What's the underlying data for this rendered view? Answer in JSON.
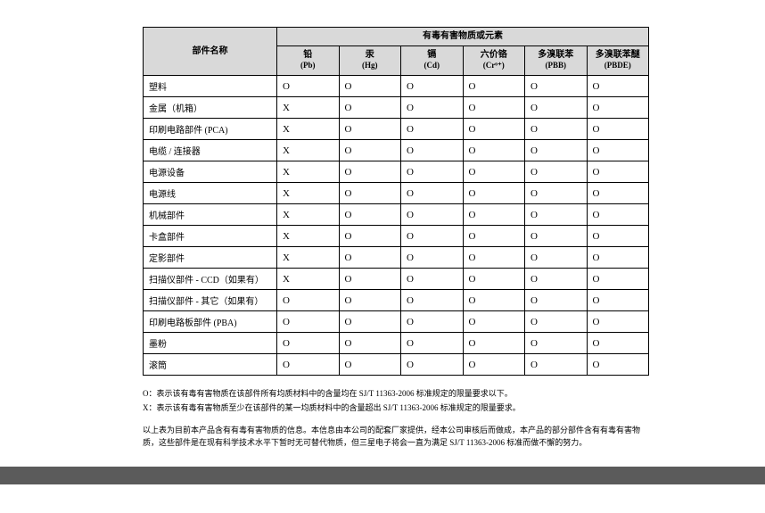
{
  "header": {
    "part_name": "部件名称",
    "group": "有毒有害物质或元素",
    "cols": [
      {
        "top": "铅",
        "sub": "(Pb)"
      },
      {
        "top": "汞",
        "sub": "(Hg)"
      },
      {
        "top": "镉",
        "sub": "(Cd)"
      },
      {
        "top": "六价铬",
        "sub": "(Cr⁶⁺)"
      },
      {
        "top": "多溴联苯",
        "sub": "(PBB)"
      },
      {
        "top": "多溴联苯醚",
        "sub": "(PBDE)"
      }
    ]
  },
  "rows": [
    {
      "name": "塑料",
      "vals": [
        "O",
        "O",
        "O",
        "O",
        "O",
        "O"
      ]
    },
    {
      "name": "金属（机箱）",
      "vals": [
        "X",
        "O",
        "O",
        "O",
        "O",
        "O"
      ]
    },
    {
      "name": "印刷电路部件 (PCA)",
      "vals": [
        "X",
        "O",
        "O",
        "O",
        "O",
        "O"
      ]
    },
    {
      "name": "电缆 / 连接器",
      "vals": [
        "X",
        "O",
        "O",
        "O",
        "O",
        "O"
      ]
    },
    {
      "name": "电源设备",
      "vals": [
        "X",
        "O",
        "O",
        "O",
        "O",
        "O"
      ]
    },
    {
      "name": "电源线",
      "vals": [
        "X",
        "O",
        "O",
        "O",
        "O",
        "O"
      ]
    },
    {
      "name": "机械部件",
      "vals": [
        "X",
        "O",
        "O",
        "O",
        "O",
        "O"
      ]
    },
    {
      "name": "卡盒部件",
      "vals": [
        "X",
        "O",
        "O",
        "O",
        "O",
        "O"
      ]
    },
    {
      "name": "定影部件",
      "vals": [
        "X",
        "O",
        "O",
        "O",
        "O",
        "O"
      ]
    },
    {
      "name": "扫描仪部件 - CCD（如果有）",
      "vals": [
        "X",
        "O",
        "O",
        "O",
        "O",
        "O"
      ]
    },
    {
      "name": "扫描仪部件 - 其它（如果有）",
      "vals": [
        "O",
        "O",
        "O",
        "O",
        "O",
        "O"
      ]
    },
    {
      "name": "印刷电路板部件 (PBA)",
      "vals": [
        "O",
        "O",
        "O",
        "O",
        "O",
        "O"
      ]
    },
    {
      "name": "墨粉",
      "vals": [
        "O",
        "O",
        "O",
        "O",
        "O",
        "O"
      ]
    },
    {
      "name": "滚筒",
      "vals": [
        "O",
        "O",
        "O",
        "O",
        "O",
        "O"
      ]
    }
  ],
  "notes": {
    "line1": "O：表示该有毒有害物质在该部件所有均质材料中的含量均在 SJ/T 11363-2006 标准规定的限量要求以下。",
    "line2": "X：表示该有毒有害物质至少在该部件的某一均质材料中的含量超出 SJ/T 11363-2006 标准规定的限量要求。",
    "para": "以上表为目前本产品含有有毒有害物质的信息。本信息由本公司的配套厂家提供，经本公司审核后而做成，本产品的部分部件含有有毒有害物质，这些部件是在现有科学技术水平下暂时无可替代物质，但三星电子将会一直为满足 SJ/T 11363-2006 标准而做不懈的努力。"
  }
}
